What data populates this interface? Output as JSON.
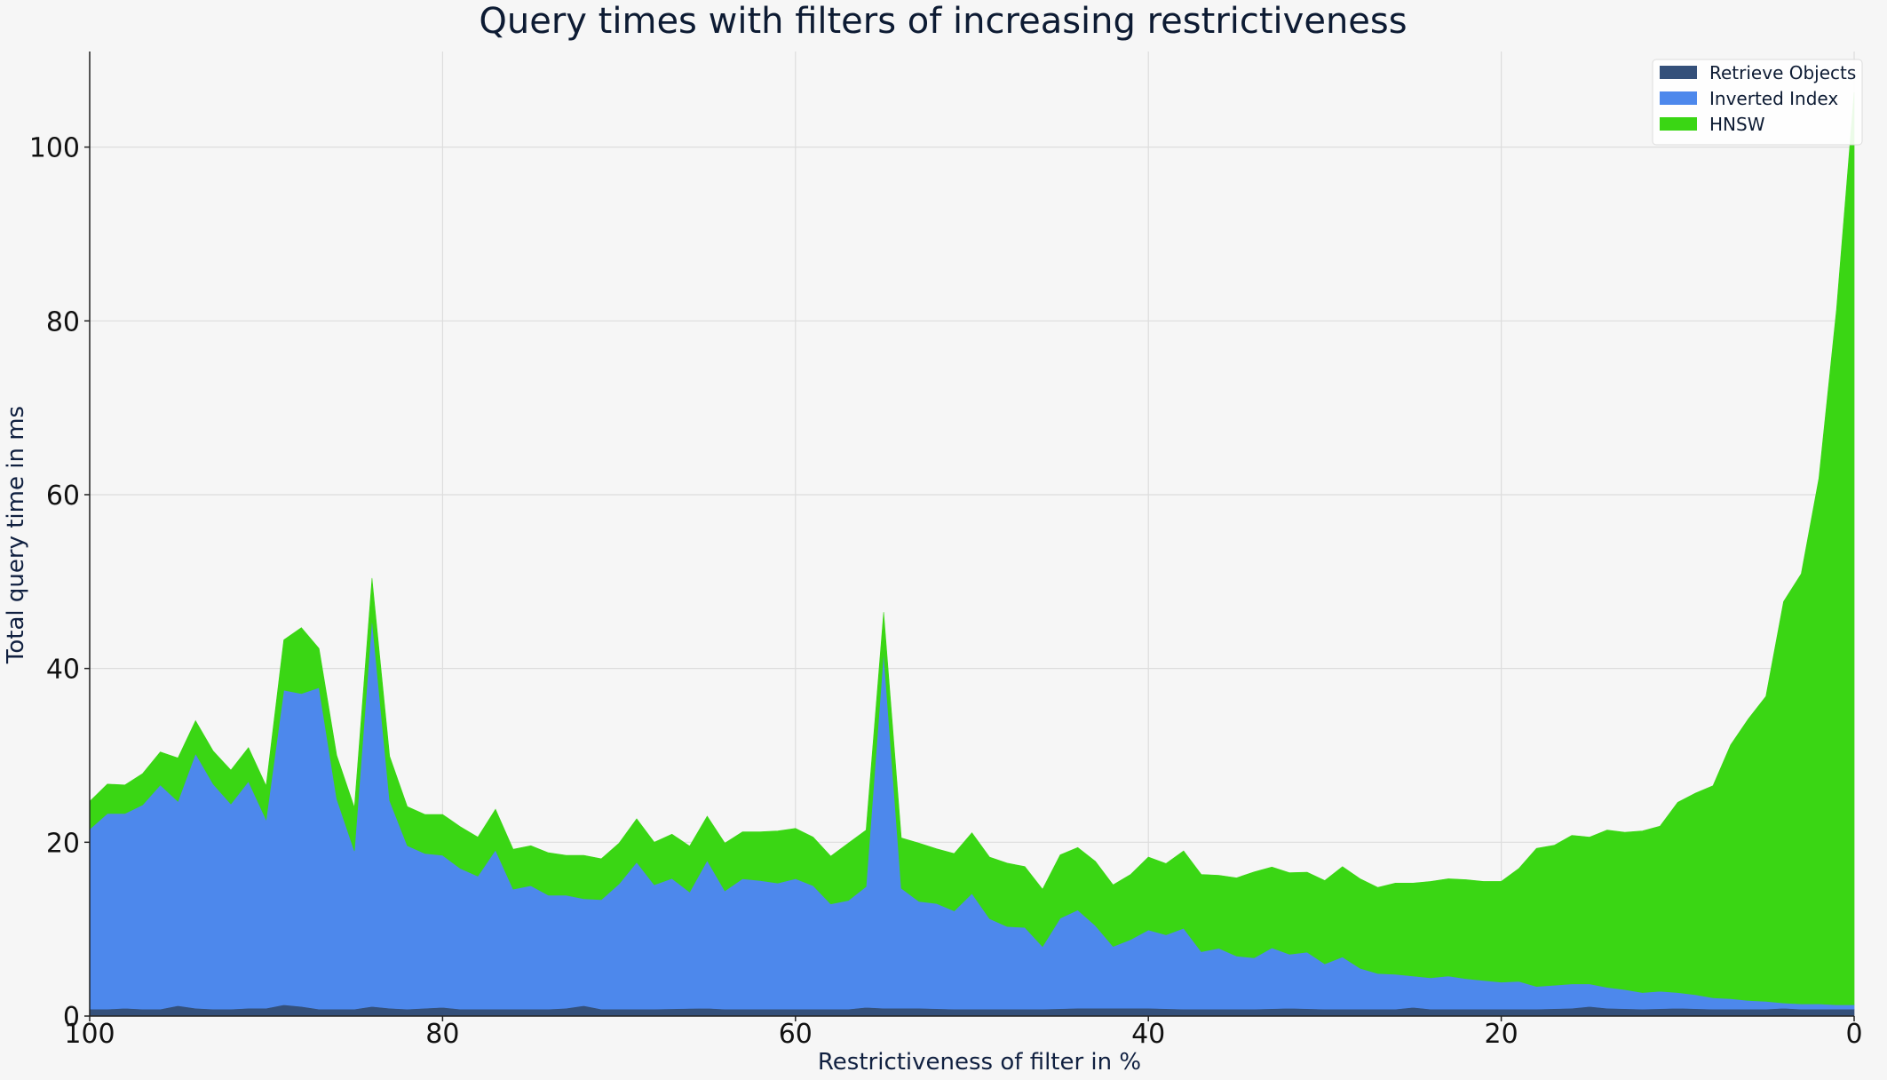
{
  "chart_data": {
    "type": "area",
    "stacked": true,
    "title": "Query times with filters of increasing restrictiveness",
    "xlabel": "Restrictiveness of filter in %",
    "ylabel": "Total query time in ms",
    "xlim": [
      100,
      0
    ],
    "ylim": [
      0,
      111
    ],
    "x_ticks": [
      100,
      80,
      60,
      40,
      20,
      0
    ],
    "y_ticks": [
      0,
      20,
      40,
      60,
      80,
      100
    ],
    "grid": true,
    "legend_position": "top-right",
    "series": [
      {
        "name": "Retrieve Objects",
        "color": "#34507a",
        "points": [
          [
            100,
            0.8
          ],
          [
            99,
            0.8
          ],
          [
            98,
            0.9
          ],
          [
            97,
            0.8
          ],
          [
            96,
            0.8
          ],
          [
            95,
            1.2
          ],
          [
            94,
            0.9
          ],
          [
            93,
            0.8
          ],
          [
            92,
            0.8
          ],
          [
            91,
            0.9
          ],
          [
            90,
            0.9
          ],
          [
            89,
            1.3
          ],
          [
            88,
            1.1
          ],
          [
            87,
            0.8
          ],
          [
            86,
            0.8
          ],
          [
            85,
            0.8
          ],
          [
            84,
            1.1
          ],
          [
            83,
            0.9
          ],
          [
            82,
            0.8
          ],
          [
            81,
            0.9
          ],
          [
            80,
            1.0
          ],
          [
            79,
            0.8
          ],
          [
            78,
            0.8
          ],
          [
            76,
            0.8
          ],
          [
            74,
            0.8
          ],
          [
            73,
            0.9
          ],
          [
            72,
            1.2
          ],
          [
            71,
            0.8
          ],
          [
            68,
            0.8
          ],
          [
            65,
            0.9
          ],
          [
            64,
            0.8
          ],
          [
            62,
            0.8
          ],
          [
            60,
            0.8
          ],
          [
            58,
            0.8
          ],
          [
            57,
            0.8
          ],
          [
            56,
            1.0
          ],
          [
            55,
            0.9
          ],
          [
            53,
            0.9
          ],
          [
            51,
            0.8
          ],
          [
            48,
            0.8
          ],
          [
            46,
            0.8
          ],
          [
            44,
            0.9
          ],
          [
            42,
            0.9
          ],
          [
            40,
            0.9
          ],
          [
            38,
            0.8
          ],
          [
            36,
            0.8
          ],
          [
            34,
            0.8
          ],
          [
            32,
            0.9
          ],
          [
            30,
            0.8
          ],
          [
            28,
            0.8
          ],
          [
            26,
            0.8
          ],
          [
            25,
            1.0
          ],
          [
            24,
            0.8
          ],
          [
            22,
            0.8
          ],
          [
            20,
            0.8
          ],
          [
            18,
            0.8
          ],
          [
            16,
            0.9
          ],
          [
            15,
            1.1
          ],
          [
            14,
            0.9
          ],
          [
            12,
            0.8
          ],
          [
            10,
            0.9
          ],
          [
            8,
            0.8
          ],
          [
            6,
            0.8
          ],
          [
            5,
            0.8
          ],
          [
            4,
            0.9
          ],
          [
            3,
            0.8
          ],
          [
            2,
            0.8
          ],
          [
            1,
            0.8
          ],
          [
            0,
            0.8
          ]
        ]
      },
      {
        "name": "Inverted Index",
        "color": "#4d88ec",
        "points": [
          [
            100,
            20.7
          ],
          [
            99,
            22.5
          ],
          [
            98,
            22.4
          ],
          [
            97,
            23.5
          ],
          [
            96,
            25.8
          ],
          [
            95,
            23.5
          ],
          [
            94,
            29.3
          ],
          [
            93,
            25.9
          ],
          [
            92,
            23.6
          ],
          [
            91,
            26.1
          ],
          [
            90,
            21.7
          ],
          [
            89,
            36.2
          ],
          [
            88,
            36.0
          ],
          [
            87,
            37.0
          ],
          [
            86,
            24.2
          ],
          [
            85,
            18.2
          ],
          [
            84,
            44.6
          ],
          [
            83,
            23.9
          ],
          [
            82,
            18.8
          ],
          [
            81,
            17.8
          ],
          [
            80,
            17.5
          ],
          [
            79,
            16.2
          ],
          [
            78,
            15.3
          ],
          [
            77,
            18.3
          ],
          [
            76,
            13.8
          ],
          [
            75,
            14.2
          ],
          [
            74,
            13.1
          ],
          [
            73,
            13.0
          ],
          [
            72,
            12.3
          ],
          [
            71,
            12.6
          ],
          [
            70,
            14.4
          ],
          [
            69,
            16.9
          ],
          [
            68,
            14.3
          ],
          [
            67,
            15.0
          ],
          [
            66,
            13.4
          ],
          [
            65,
            17.0
          ],
          [
            64,
            13.6
          ],
          [
            63,
            15.0
          ],
          [
            62,
            14.8
          ],
          [
            61,
            14.5
          ],
          [
            60,
            15.0
          ],
          [
            59,
            14.2
          ],
          [
            58,
            12.1
          ],
          [
            57,
            12.5
          ],
          [
            56,
            13.9
          ],
          [
            55,
            41.0
          ],
          [
            54,
            13.8
          ],
          [
            53,
            12.3
          ],
          [
            52,
            12.1
          ],
          [
            51,
            11.3
          ],
          [
            50,
            13.3
          ],
          [
            49,
            10.4
          ],
          [
            48,
            9.5
          ],
          [
            47,
            9.4
          ],
          [
            46,
            7.2
          ],
          [
            45,
            10.4
          ],
          [
            44,
            11.3
          ],
          [
            43,
            9.5
          ],
          [
            42,
            7.1
          ],
          [
            41,
            7.9
          ],
          [
            40,
            9.0
          ],
          [
            39,
            8.5
          ],
          [
            38,
            9.3
          ],
          [
            37,
            6.6
          ],
          [
            36,
            7.0
          ],
          [
            35,
            6.1
          ],
          [
            34,
            5.9
          ],
          [
            33,
            7.0
          ],
          [
            32,
            6.2
          ],
          [
            31,
            6.5
          ],
          [
            30,
            5.2
          ],
          [
            29,
            6.0
          ],
          [
            28,
            4.7
          ],
          [
            27,
            4.1
          ],
          [
            26,
            4.0
          ],
          [
            25,
            3.6
          ],
          [
            24,
            3.6
          ],
          [
            23,
            3.8
          ],
          [
            22,
            3.5
          ],
          [
            21,
            3.3
          ],
          [
            20,
            3.1
          ],
          [
            19,
            3.2
          ],
          [
            18,
            2.6
          ],
          [
            17,
            2.7
          ],
          [
            16,
            2.8
          ],
          [
            15,
            2.6
          ],
          [
            14,
            2.4
          ],
          [
            13,
            2.2
          ],
          [
            12,
            1.9
          ],
          [
            11,
            2.0
          ],
          [
            10,
            1.8
          ],
          [
            9,
            1.6
          ],
          [
            8,
            1.3
          ],
          [
            7,
            1.2
          ],
          [
            6,
            1.0
          ],
          [
            5,
            0.9
          ],
          [
            4,
            0.6
          ],
          [
            3,
            0.6
          ],
          [
            2,
            0.6
          ],
          [
            1,
            0.5
          ],
          [
            0,
            0.5
          ]
        ]
      },
      {
        "name": "HNSW",
        "color": "#3ad614",
        "points": [
          [
            100,
            3.2
          ],
          [
            99,
            3.4
          ],
          [
            98,
            3.3
          ],
          [
            97,
            3.6
          ],
          [
            96,
            3.8
          ],
          [
            95,
            5.0
          ],
          [
            94,
            3.8
          ],
          [
            93,
            3.8
          ],
          [
            92,
            3.9
          ],
          [
            91,
            3.9
          ],
          [
            90,
            3.9
          ],
          [
            89,
            5.8
          ],
          [
            88,
            7.6
          ],
          [
            87,
            4.5
          ],
          [
            86,
            5.0
          ],
          [
            85,
            5.0
          ],
          [
            84,
            4.7
          ],
          [
            83,
            5.1
          ],
          [
            82,
            4.5
          ],
          [
            81,
            4.5
          ],
          [
            80,
            4.7
          ],
          [
            79,
            4.8
          ],
          [
            78,
            4.5
          ],
          [
            77,
            4.7
          ],
          [
            76,
            4.6
          ],
          [
            75,
            4.6
          ],
          [
            74,
            4.9
          ],
          [
            73,
            4.6
          ],
          [
            72,
            5.0
          ],
          [
            71,
            4.7
          ],
          [
            70,
            4.7
          ],
          [
            69,
            5.0
          ],
          [
            68,
            4.9
          ],
          [
            67,
            5.1
          ],
          [
            66,
            5.3
          ],
          [
            65,
            5.1
          ],
          [
            64,
            5.5
          ],
          [
            63,
            5.4
          ],
          [
            62,
            5.6
          ],
          [
            61,
            6.0
          ],
          [
            60,
            5.8
          ],
          [
            59,
            5.6
          ],
          [
            58,
            5.5
          ],
          [
            57,
            6.6
          ],
          [
            56,
            6.5
          ],
          [
            55,
            4.6
          ],
          [
            54,
            5.8
          ],
          [
            53,
            6.7
          ],
          [
            52,
            6.3
          ],
          [
            51,
            6.6
          ],
          [
            50,
            7.0
          ],
          [
            49,
            7.1
          ],
          [
            48,
            7.3
          ],
          [
            47,
            7.0
          ],
          [
            46,
            6.6
          ],
          [
            45,
            7.3
          ],
          [
            44,
            7.2
          ],
          [
            43,
            7.4
          ],
          [
            42,
            7.1
          ],
          [
            41,
            7.5
          ],
          [
            40,
            8.4
          ],
          [
            39,
            8.2
          ],
          [
            38,
            8.9
          ],
          [
            37,
            8.9
          ],
          [
            36,
            8.4
          ],
          [
            35,
            9.0
          ],
          [
            34,
            9.9
          ],
          [
            33,
            9.3
          ],
          [
            32,
            9.4
          ],
          [
            31,
            9.2
          ],
          [
            30,
            9.6
          ],
          [
            29,
            10.4
          ],
          [
            28,
            10.3
          ],
          [
            27,
            9.9
          ],
          [
            26,
            10.5
          ],
          [
            25,
            10.7
          ],
          [
            24,
            11.1
          ],
          [
            23,
            11.2
          ],
          [
            22,
            11.4
          ],
          [
            21,
            11.4
          ],
          [
            20,
            11.6
          ],
          [
            19,
            13.0
          ],
          [
            18,
            15.9
          ],
          [
            17,
            16.1
          ],
          [
            16,
            17.1
          ],
          [
            15,
            16.9
          ],
          [
            14,
            18.1
          ],
          [
            13,
            18.1
          ],
          [
            12,
            18.6
          ],
          [
            11,
            19.0
          ],
          [
            10,
            21.9
          ],
          [
            9,
            23.2
          ],
          [
            8,
            24.4
          ],
          [
            7,
            29.2
          ],
          [
            6,
            32.4
          ],
          [
            5,
            35.1
          ],
          [
            4,
            46.2
          ],
          [
            3,
            49.5
          ],
          [
            2,
            60.5
          ],
          [
            1,
            80.0
          ],
          [
            0,
            105.0
          ]
        ]
      }
    ]
  }
}
